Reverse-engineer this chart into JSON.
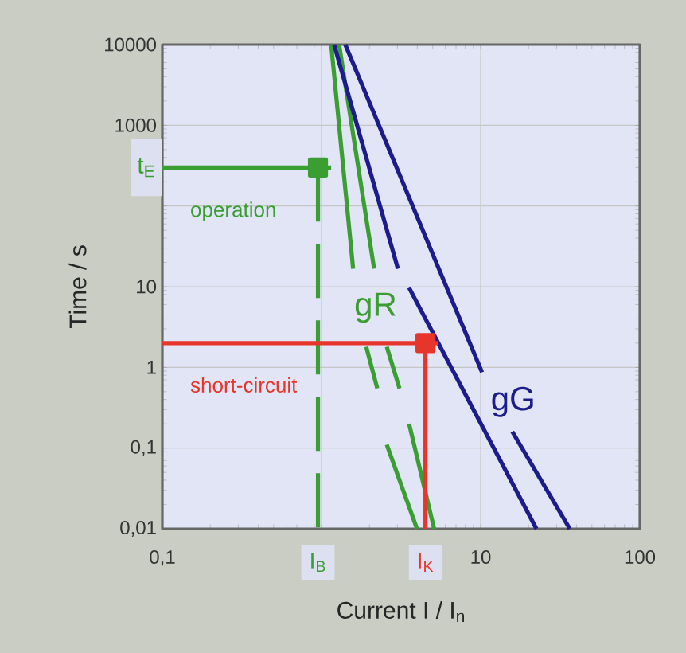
{
  "chart_data": {
    "type": "line",
    "log": "xy",
    "xlim": [
      0.1,
      100
    ],
    "ylim": [
      0.01,
      10000
    ],
    "grid": true,
    "xlabel": "Current I / I$_{n}$",
    "ylabel": "Time / s",
    "xticks": [
      {
        "value": 0.1,
        "label": "0,1"
      },
      {
        "value": 1,
        "label": null
      },
      10,
      100,
      {
        "value": 0.95,
        "label": "I$_{B}$"
      },
      {
        "value": 4.5,
        "label": "I$_{K}$"
      }
    ],
    "yticks": [
      {
        "value": 0.01,
        "label": "0,01"
      },
      {
        "value": 0.1,
        "label": "0,1"
      },
      1,
      10,
      {
        "value": 100,
        "label": null
      },
      1000,
      10000,
      {
        "value": 300,
        "label": "t$_{E}$"
      }
    ],
    "series": [
      {
        "name": "gR",
        "color": "#3a9e32",
        "x": [
          1.15,
          1.58,
          1.74,
          1.91,
          2.24,
          2.4,
          2.57,
          3.98
        ],
        "values": [
          10000,
          16.7,
          null,
          1.8,
          0.55,
          null,
          0.11,
          0.01
        ]
      },
      {
        "color": "#3a9e32",
        "x": [
          1.29,
          2.14,
          2.35,
          2.57,
          3.09,
          3.3,
          3.55,
          5.1
        ],
        "values": [
          10000,
          16.7,
          null,
          1.8,
          0.55,
          null,
          0.2,
          0.01
        ]
      },
      {
        "color": "#1c1c8c",
        "x": [
          1.2,
          3.02,
          3.3,
          3.55,
          22.4
        ],
        "values": [
          10000,
          16.7,
          null,
          9.7,
          0.01
        ]
      },
      {
        "name": "gG",
        "color": "#1c1c8c",
        "x": [
          1.41,
          10.2,
          12.7,
          15.8,
          36.3
        ],
        "values": [
          10000,
          0.87,
          null,
          0.16,
          0.01
        ]
      },
      {
        "name": "operation",
        "color": "#3a9e32",
        "x": [
          0.1,
          1.15
        ],
        "values": [
          300,
          300
        ]
      },
      {
        "color": "#3a9e32",
        "line_style": "dashed",
        "x": [
          0.95,
          0.95
        ],
        "values": [
          300,
          0.01
        ]
      },
      {
        "type": "scatter",
        "marker": "square",
        "color": "#3a9e32",
        "x": [
          0.95
        ],
        "values": [
          300
        ]
      },
      {
        "name": "short-circuit",
        "color": "#e8352b",
        "x": [
          0.1,
          5.4
        ],
        "values": [
          2,
          2
        ]
      },
      {
        "color": "#e8352b",
        "x": [
          4.5,
          4.5
        ],
        "values": [
          2,
          0.01
        ]
      },
      {
        "type": "scatter",
        "marker": "square",
        "color": "#e8352b",
        "x": [
          4.5
        ],
        "values": [
          2
        ]
      }
    ]
  }
}
